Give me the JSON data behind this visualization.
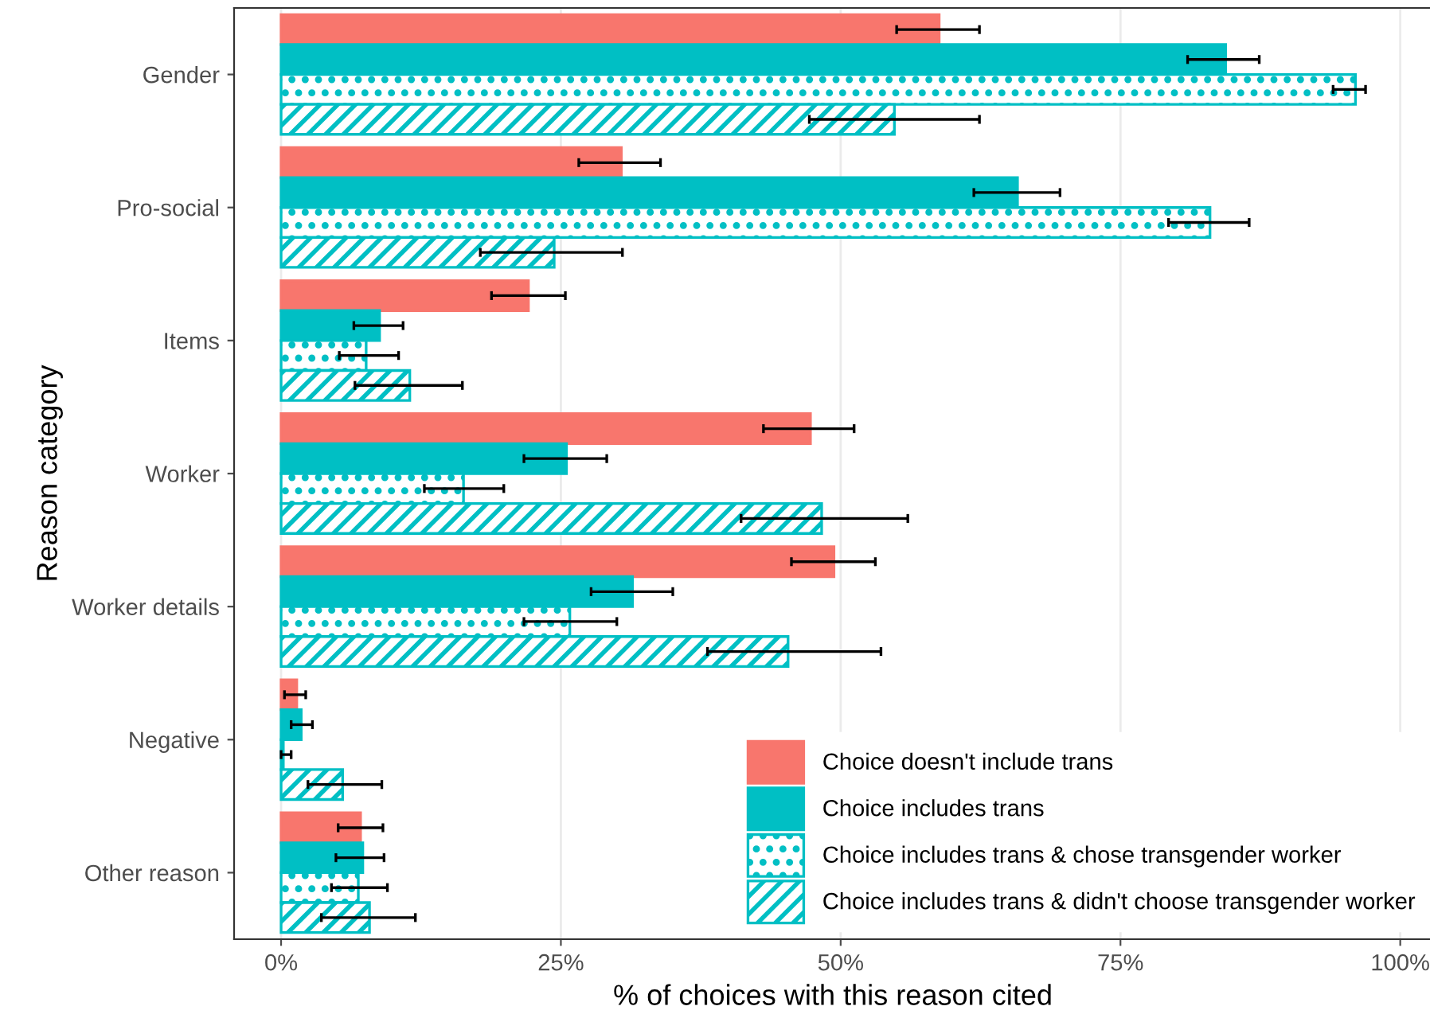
{
  "chart_data": {
    "type": "bar",
    "orientation": "horizontal",
    "xlabel": "% of choices with this reason cited",
    "ylabel": "Reason category",
    "categories": [
      "Gender",
      "Pro-social",
      "Items",
      "Worker",
      "Worker details",
      "Negative",
      "Other reason"
    ],
    "xlim": [
      -4.2,
      102.8
    ],
    "xticks": [
      {
        "value": 0,
        "label": "0%"
      },
      {
        "value": 25,
        "label": "25%"
      },
      {
        "value": 50,
        "label": "50%"
      },
      {
        "value": 75,
        "label": "75%"
      },
      {
        "value": 100,
        "label": "100%"
      }
    ],
    "grid": "x",
    "legend": "bottom right",
    "series": [
      {
        "name": "Choice doesn't include trans",
        "color": "#f8766d",
        "values": [
          58.8,
          30.4,
          22.1,
          47.3,
          49.4,
          1.4,
          7.1
        ],
        "errors": [
          [
            55.0,
            62.4
          ],
          [
            26.6,
            33.9
          ],
          [
            18.8,
            25.4
          ],
          [
            43.1,
            51.2
          ],
          [
            45.6,
            53.1
          ],
          [
            0.3,
            2.2
          ],
          [
            5.1,
            9.1
          ]
        ]
      },
      {
        "name": "Choice includes trans",
        "color": "#00bfc4",
        "values": [
          84.4,
          65.8,
          8.8,
          25.5,
          31.4,
          1.8,
          7.3
        ],
        "errors": [
          [
            81.0,
            87.4
          ],
          [
            61.9,
            69.6
          ],
          [
            6.5,
            10.9
          ],
          [
            21.7,
            29.1
          ],
          [
            27.7,
            35.0
          ],
          [
            0.9,
            2.8
          ],
          [
            4.9,
            9.2
          ]
        ]
      },
      {
        "name": "Choice includes trans & chose transgender worker",
        "color": "#00bfc4",
        "values": [
          96.0,
          83.0,
          7.6,
          16.3,
          25.8,
          0.2,
          6.9
        ],
        "errors": [
          [
            94.0,
            96.9
          ],
          [
            79.3,
            86.5
          ],
          [
            5.2,
            10.5
          ],
          [
            12.8,
            19.9
          ],
          [
            21.7,
            30.0
          ],
          [
            0.0,
            0.9
          ],
          [
            4.5,
            9.5
          ]
        ]
      },
      {
        "name": "Choice includes trans & didn't choose transgender worker",
        "color": "#00bfc4",
        "values": [
          54.8,
          24.4,
          11.5,
          48.3,
          45.3,
          5.5,
          7.9
        ],
        "errors": [
          [
            47.2,
            62.4
          ],
          [
            17.8,
            30.5
          ],
          [
            6.6,
            16.2
          ],
          [
            41.1,
            56.0
          ],
          [
            38.1,
            53.6
          ],
          [
            2.4,
            9.0
          ],
          [
            3.6,
            12.0
          ]
        ]
      }
    ]
  }
}
